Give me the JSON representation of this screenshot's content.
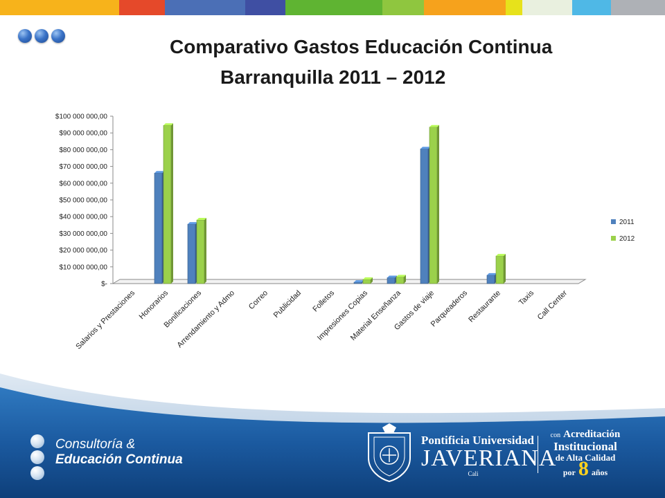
{
  "header": {
    "stripe_colors": [
      "#f7b31b",
      "#e5492a",
      "#4b6fb6",
      "#3f4fa3",
      "#5fb432",
      "#8fc63f",
      "#f6a21c",
      "#e7e21b",
      "#e9f0df",
      "#4fb8e6",
      "#aeb1b6"
    ],
    "title_line1": "Comparativo Gastos Educación Continua",
    "title_line2": "Barranquilla  2011 – 2012"
  },
  "chart_data": {
    "type": "bar",
    "title": "Comparativo Gastos Educación Continua Barranquilla 2011 – 2012",
    "xlabel": "",
    "ylabel": "",
    "ylim": [
      0,
      100000000
    ],
    "y_ticks": [
      {
        "value": 100000000,
        "label": "$100 000 000,00"
      },
      {
        "value": 90000000,
        "label": "$90 000 000,00"
      },
      {
        "value": 80000000,
        "label": "$80 000 000,00"
      },
      {
        "value": 70000000,
        "label": "$70 000 000,00"
      },
      {
        "value": 60000000,
        "label": "$60 000 000,00"
      },
      {
        "value": 50000000,
        "label": "$50 000 000,00"
      },
      {
        "value": 40000000,
        "label": "$40 000 000,00"
      },
      {
        "value": 30000000,
        "label": "$30 000 000,00"
      },
      {
        "value": 20000000,
        "label": "$20 000 000,00"
      },
      {
        "value": 10000000,
        "label": "$10 000 000,00"
      },
      {
        "value": 0,
        "label": "$-"
      }
    ],
    "categories": [
      "Salarios y Prestaciones",
      "Honorarios",
      "Bonificaciones",
      "Arrendamiento y Admo",
      "Correo",
      "Publicidad",
      "Folletos",
      "Impresiones Copias",
      "Material Enseñanza",
      "Gastos de viaje",
      "Parqueaderos",
      "Restaurante",
      "Taxis",
      "Call Center"
    ],
    "series": [
      {
        "name": "2011",
        "color": "#4f81bd",
        "values": [
          0,
          66000000,
          35500000,
          0,
          0,
          0,
          0,
          800000,
          3500000,
          80500000,
          0,
          5000000,
          0,
          0
        ]
      },
      {
        "name": "2012",
        "color": "#9bd14b",
        "values": [
          0,
          94500000,
          38000000,
          0,
          0,
          0,
          0,
          2500000,
          4000000,
          93500000,
          0,
          16500000,
          0,
          0
        ]
      }
    ],
    "grid": false,
    "legend_position": "right"
  },
  "footer": {
    "brand_line1": "Consultoría &",
    "brand_line2": "Educación Continua",
    "univ_line1": "Pontificia Universidad",
    "univ_line2": "JAVERIANA",
    "univ_line3": "Cali",
    "accr_con": "con",
    "accr_acreditacion": "Acreditación",
    "accr_institucional": "Institucional",
    "accr_alta": "de Alta Calidad",
    "accr_por": "por",
    "accr_eight": "8",
    "accr_anos": "años"
  }
}
